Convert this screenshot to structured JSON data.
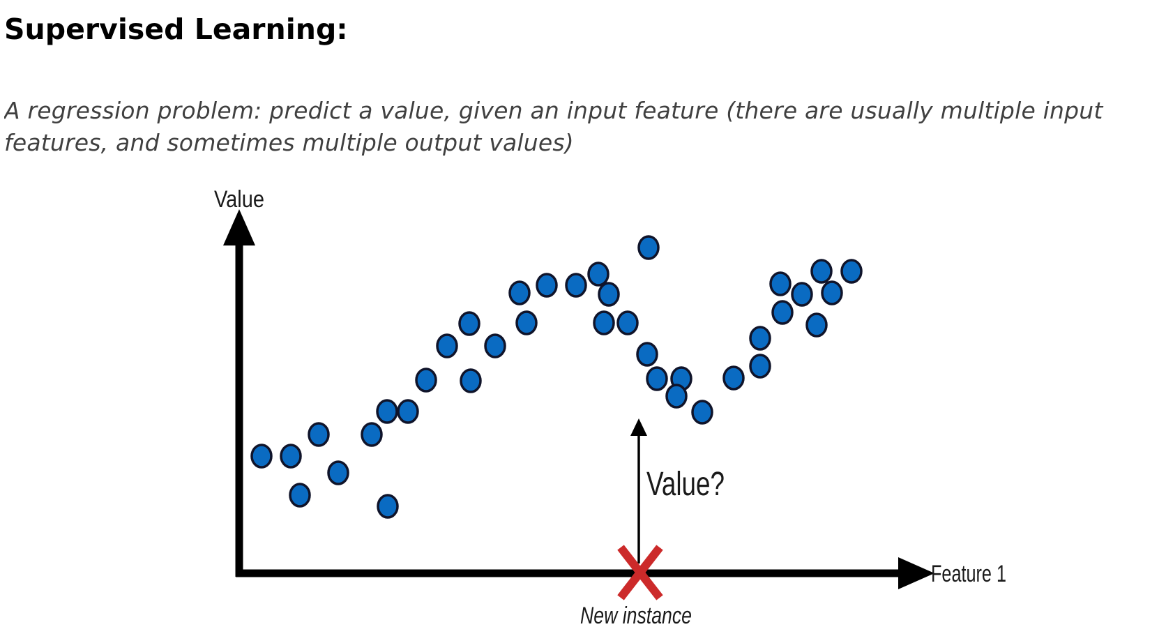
{
  "title": "Supervised Learning:",
  "subtitle": "A regression problem: predict a value, given an input feature (there are usually multiple input features, and sometimes multiple output values)",
  "diagram": {
    "y_axis_label": "Value",
    "x_axis_label": "Feature 1",
    "query_label": "Value?",
    "instance_label": "New instance",
    "colors": {
      "point_fill": "#0a6bc2",
      "point_stroke": "#10142a",
      "axis": "#000000",
      "marker": "#cc2a2a"
    }
  }
}
